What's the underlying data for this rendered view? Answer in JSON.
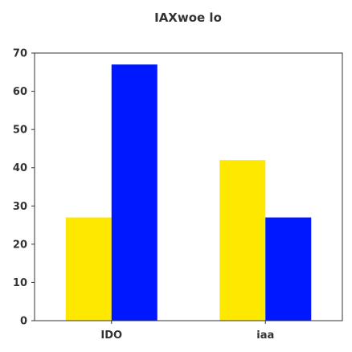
{
  "chart_data": {
    "type": "bar",
    "title": "IAXwoe lo",
    "xlabel": "",
    "ylabel": "",
    "categories": [
      "IDO",
      "iaa"
    ],
    "series": [
      {
        "values": [
          27,
          42
        ],
        "color": "#ffe800"
      },
      {
        "values": [
          67,
          27
        ],
        "color": "#0018ff"
      }
    ],
    "ylim": [
      0,
      70
    ],
    "yticks": [
      0,
      10,
      20,
      30,
      40,
      50,
      60,
      70
    ],
    "grid": false,
    "legend": "none"
  },
  "colors": {
    "frame": "#333333",
    "text": "#333333",
    "background": "#ffffff"
  }
}
